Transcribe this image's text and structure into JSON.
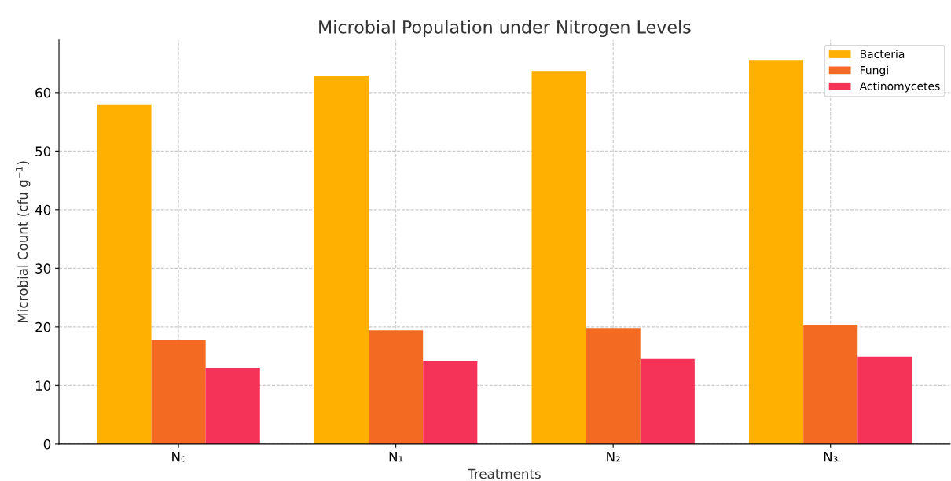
{
  "chart_data": {
    "type": "bar",
    "title": "Microbial Population under Nitrogen Levels",
    "xlabel": "Treatments",
    "ylabel": "Microbial Count (cfu g$^{−1}$)",
    "categories": [
      "N₀",
      "N₁",
      "N₂",
      "N₃"
    ],
    "series": [
      {
        "name": "Bacteria",
        "color": "#ffb000",
        "values": [
          58.0,
          62.8,
          63.7,
          65.6
        ]
      },
      {
        "name": "Fungi",
        "color": "#f36b22",
        "values": [
          17.8,
          19.4,
          19.8,
          20.4
        ]
      },
      {
        "name": "Actinomycetes",
        "color": "#f53358",
        "values": [
          13.0,
          14.2,
          14.5,
          14.9
        ]
      }
    ],
    "ylim": [
      0,
      69
    ],
    "yticks": [
      0,
      10,
      20,
      30,
      40,
      50,
      60
    ],
    "grid": true,
    "legend": "top right"
  }
}
